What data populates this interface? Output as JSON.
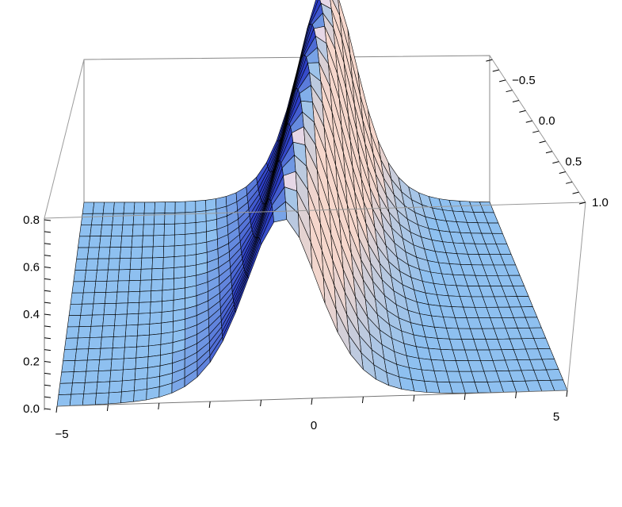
{
  "chart_data": {
    "type": "surface3d",
    "title": "",
    "surface": "soliton ridge: z(x, t) = peak(t) * sech^2(x - x0(t)) on a flat zero base; ridge crest highest at the far edge and lower at the front edge",
    "x_axis": {
      "label": "",
      "range": [
        -5,
        5
      ],
      "ticks": [
        -5,
        0,
        5
      ],
      "tick_labels": [
        "−5",
        "0",
        "5"
      ]
    },
    "y_axis": {
      "label": "",
      "range": [
        -0.8,
        1.0
      ],
      "ticks": [
        -0.5,
        0.0,
        0.5,
        1.0
      ],
      "tick_labels": [
        "−0.5",
        "0.0",
        "0.5",
        "1.0"
      ]
    },
    "z_axis": {
      "label": "",
      "range": [
        0,
        0.8
      ],
      "ticks": [
        0.0,
        0.2,
        0.4,
        0.6,
        0.8
      ],
      "tick_labels": [
        "0.0",
        "0.2",
        "0.4",
        "0.6",
        "0.8"
      ]
    },
    "ridge": {
      "far_edge": {
        "y": -0.8,
        "center_x": 1.0,
        "peak_z": 1.17
      },
      "near_edge": {
        "y": 1.0,
        "center_x": -0.6,
        "peak_z": 0.62
      },
      "width": 1.0
    },
    "grid": false,
    "box": true,
    "colors": {
      "base": "#8ec0f0",
      "shadow": "#2d3fc8",
      "highlight": "#f6d7cc",
      "mesh": "#000000"
    }
  }
}
